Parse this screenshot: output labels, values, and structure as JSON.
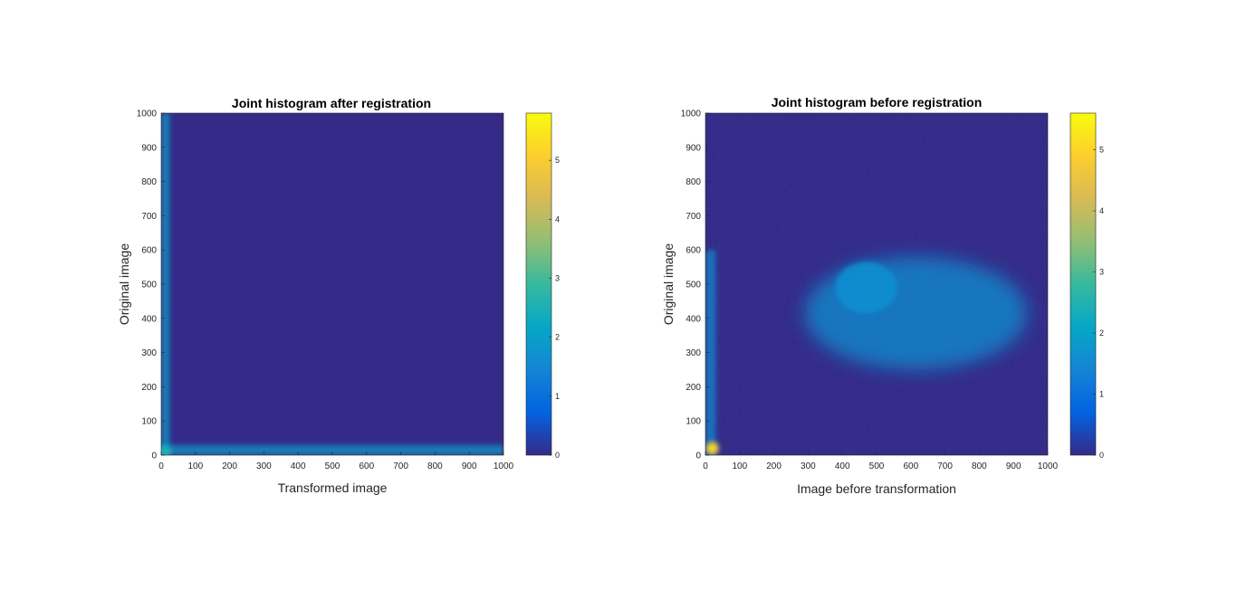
{
  "colors": {
    "background": "#ffffff",
    "colormap": "parula",
    "colormap_stops": [
      "#352a87",
      "#0363e1",
      "#1485d4",
      "#06a7c6",
      "#38b99e",
      "#92bf73",
      "#d9ba56",
      "#fcce2e",
      "#f9fb0e"
    ],
    "axes": "#262626"
  },
  "chart_data": [
    {
      "type": "heatmap",
      "title": "Joint histogram after registration",
      "xlabel": "Transformed image",
      "ylabel": "Original image",
      "xlim": [
        0,
        1000
      ],
      "ylim": [
        0,
        1000
      ],
      "xticks": [
        0,
        100,
        200,
        300,
        400,
        500,
        600,
        700,
        800,
        900,
        1000
      ],
      "yticks": [
        0,
        100,
        200,
        300,
        400,
        500,
        600,
        700,
        800,
        900,
        1000
      ],
      "colorbar": {
        "limits": [
          0,
          5.8
        ],
        "ticks": [
          0,
          1,
          2,
          3,
          4,
          5
        ]
      },
      "features": [
        {
          "shape": "vertical-band",
          "x": [
            0,
            25
          ],
          "y": [
            0,
            1000
          ],
          "peak_value": 2.0
        },
        {
          "shape": "horizontal-band",
          "x": [
            0,
            1000
          ],
          "y": [
            0,
            30
          ],
          "peak_value": 2.0
        },
        {
          "shape": "spot",
          "x": 10,
          "y": 10,
          "peak_value": 2.5
        }
      ]
    },
    {
      "type": "heatmap",
      "title": "Joint histogram before registration",
      "xlabel": "Image before transformation",
      "ylabel": "Original image",
      "xlim": [
        0,
        1000
      ],
      "ylim": [
        0,
        1000
      ],
      "xticks": [
        0,
        100,
        200,
        300,
        400,
        500,
        600,
        700,
        800,
        900,
        1000
      ],
      "yticks": [
        0,
        100,
        200,
        300,
        400,
        500,
        600,
        700,
        800,
        900,
        1000
      ],
      "colorbar": {
        "limits": [
          0,
          5.6
        ],
        "ticks": [
          0,
          1,
          2,
          3,
          4,
          5
        ]
      },
      "features": [
        {
          "shape": "blob",
          "x": [
            350,
            1000
          ],
          "y": [
            250,
            580
          ],
          "peak_value": 1.6
        },
        {
          "shape": "diffuse-background",
          "x": [
            0,
            1000
          ],
          "y": [
            0,
            1000
          ],
          "peak_value": 0.9
        },
        {
          "shape": "vertical-band",
          "x": [
            0,
            30
          ],
          "y": [
            0,
            600
          ],
          "peak_value": 1.6
        },
        {
          "shape": "spot",
          "x": 20,
          "y": 20,
          "peak_value": 5.0
        }
      ]
    }
  ]
}
